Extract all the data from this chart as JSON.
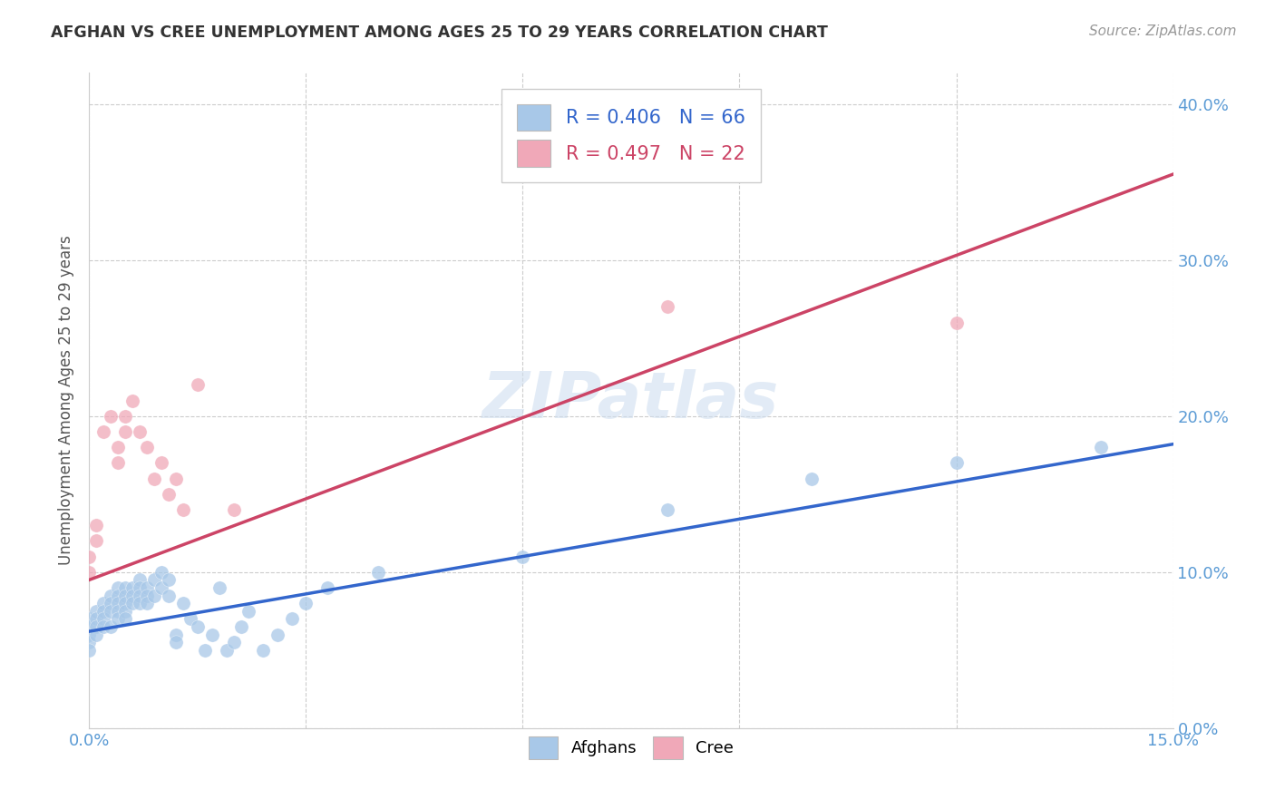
{
  "title": "AFGHAN VS CREE UNEMPLOYMENT AMONG AGES 25 TO 29 YEARS CORRELATION CHART",
  "source": "Source: ZipAtlas.com",
  "ylabel": "Unemployment Among Ages 25 to 29 years",
  "xlim": [
    0.0,
    0.15
  ],
  "ylim": [
    0.0,
    0.42
  ],
  "xtick_positions": [
    0.0,
    0.03,
    0.06,
    0.09,
    0.12,
    0.15
  ],
  "xtick_labels": [
    "0.0%",
    "",
    "",
    "",
    "",
    "15.0%"
  ],
  "ytick_positions": [
    0.0,
    0.1,
    0.2,
    0.3,
    0.4
  ],
  "ytick_labels_right": [
    "0.0%",
    "10.0%",
    "20.0%",
    "30.0%",
    "40.0%"
  ],
  "afghan_color": "#a8c8e8",
  "cree_color": "#f0a8b8",
  "afghan_line_color": "#3366cc",
  "cree_line_color": "#cc4466",
  "legend_afghan_R": "0.406",
  "legend_afghan_N": "66",
  "legend_cree_R": "0.497",
  "legend_cree_N": "22",
  "watermark": "ZIPatlas",
  "afghans_x": [
    0.0,
    0.0,
    0.0,
    0.0,
    0.0,
    0.001,
    0.001,
    0.001,
    0.001,
    0.002,
    0.002,
    0.002,
    0.002,
    0.003,
    0.003,
    0.003,
    0.003,
    0.004,
    0.004,
    0.004,
    0.004,
    0.004,
    0.005,
    0.005,
    0.005,
    0.005,
    0.005,
    0.006,
    0.006,
    0.006,
    0.007,
    0.007,
    0.007,
    0.007,
    0.008,
    0.008,
    0.008,
    0.009,
    0.009,
    0.01,
    0.01,
    0.011,
    0.011,
    0.012,
    0.012,
    0.013,
    0.014,
    0.015,
    0.016,
    0.017,
    0.018,
    0.019,
    0.02,
    0.021,
    0.022,
    0.024,
    0.026,
    0.028,
    0.03,
    0.033,
    0.04,
    0.06,
    0.08,
    0.1,
    0.12,
    0.14
  ],
  "afghans_y": [
    0.07,
    0.065,
    0.06,
    0.055,
    0.05,
    0.075,
    0.07,
    0.065,
    0.06,
    0.08,
    0.075,
    0.07,
    0.065,
    0.085,
    0.08,
    0.075,
    0.065,
    0.09,
    0.085,
    0.08,
    0.075,
    0.07,
    0.09,
    0.085,
    0.08,
    0.075,
    0.07,
    0.09,
    0.085,
    0.08,
    0.095,
    0.09,
    0.085,
    0.08,
    0.09,
    0.085,
    0.08,
    0.095,
    0.085,
    0.1,
    0.09,
    0.095,
    0.085,
    0.06,
    0.055,
    0.08,
    0.07,
    0.065,
    0.05,
    0.06,
    0.09,
    0.05,
    0.055,
    0.065,
    0.075,
    0.05,
    0.06,
    0.07,
    0.08,
    0.09,
    0.1,
    0.11,
    0.14,
    0.16,
    0.17,
    0.18
  ],
  "cree_x": [
    0.0,
    0.0,
    0.001,
    0.001,
    0.002,
    0.003,
    0.004,
    0.004,
    0.005,
    0.005,
    0.006,
    0.007,
    0.008,
    0.009,
    0.01,
    0.011,
    0.012,
    0.013,
    0.015,
    0.02,
    0.08,
    0.12
  ],
  "cree_y": [
    0.11,
    0.1,
    0.13,
    0.12,
    0.19,
    0.2,
    0.18,
    0.17,
    0.2,
    0.19,
    0.21,
    0.19,
    0.18,
    0.16,
    0.17,
    0.15,
    0.16,
    0.14,
    0.22,
    0.14,
    0.27,
    0.26
  ],
  "afghan_trend_x": [
    0.0,
    0.15
  ],
  "afghan_trend_y": [
    0.062,
    0.182
  ],
  "cree_trend_x": [
    0.0,
    0.15
  ],
  "cree_trend_y": [
    0.095,
    0.355
  ]
}
